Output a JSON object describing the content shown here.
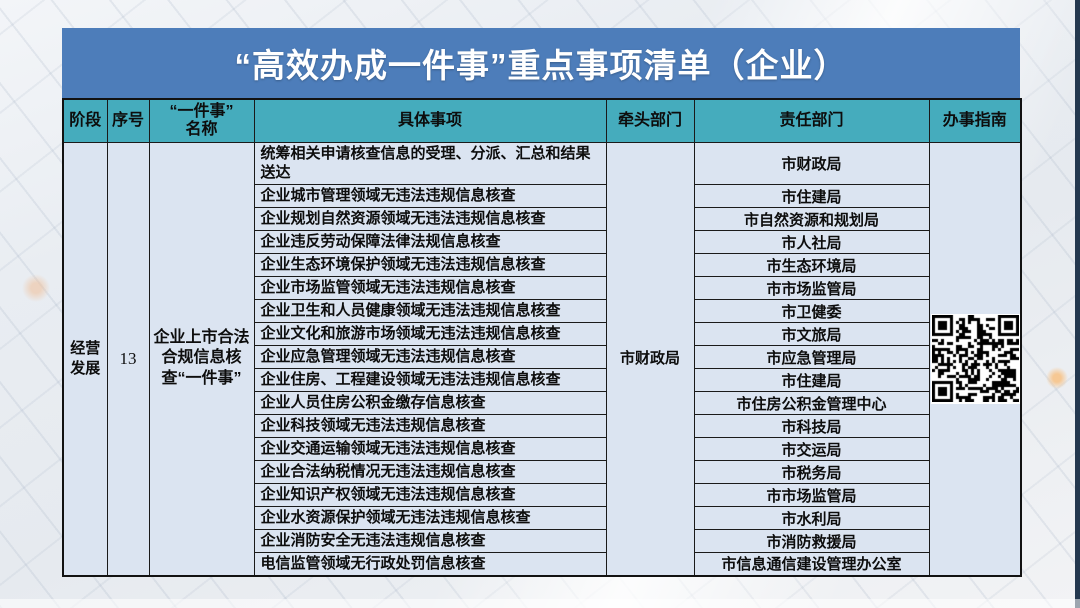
{
  "page": {
    "title": "“高效办成一件事”重点事项清单（企业）"
  },
  "colors": {
    "title_bar": "#4d7dba",
    "header_teal": "#45acbd",
    "cell_blue": "#dbe4f1",
    "border": "#1a1a1a",
    "title_text": "#ffffff"
  },
  "table": {
    "columns": {
      "stage": "阶段",
      "number": "序号",
      "name_line1": "“一件事”",
      "name_line2": "名称",
      "item": "具体事项",
      "lead": "牵头部门",
      "responsible": "责任部门",
      "guide": "办事指南"
    },
    "merged": {
      "stage": "经营发展",
      "number": "13",
      "name": "企业上市合法合规信息核查“一件事”",
      "lead": "市财政局",
      "guide_icon": "qr-code"
    },
    "rows": [
      {
        "item": "统筹相关申请核查信息的受理、分派、汇总和结果送达",
        "responsible": "市财政局"
      },
      {
        "item": "企业城市管理领域无违法违规信息核查",
        "responsible": "市住建局"
      },
      {
        "item": "企业规划自然资源领域无违法违规信息核查",
        "responsible": "市自然资源和规划局"
      },
      {
        "item": "企业违反劳动保障法律法规信息核查",
        "responsible": "市人社局"
      },
      {
        "item": "企业生态环境保护领域无违法违规信息核查",
        "responsible": "市生态环境局"
      },
      {
        "item": "企业市场监管领域无违法违规信息核查",
        "responsible": "市市场监管局"
      },
      {
        "item": "企业卫生和人员健康领域无违法违规信息核查",
        "responsible": "市卫健委"
      },
      {
        "item": "企业文化和旅游市场领域无违法违规信息核查",
        "responsible": "市文旅局"
      },
      {
        "item": "企业应急管理领域无违法违规信息核查",
        "responsible": "市应急管理局"
      },
      {
        "item": "企业住房、工程建设领域无违法违规信息核查",
        "responsible": "市住建局"
      },
      {
        "item": "企业人员住房公积金缴存信息核查",
        "responsible": "市住房公积金管理中心"
      },
      {
        "item": "企业科技领域无违法违规信息核查",
        "responsible": "市科技局"
      },
      {
        "item": "企业交通运输领域无违法违规信息核查",
        "responsible": "市交运局"
      },
      {
        "item": "企业合法纳税情况无违法违规信息核查",
        "responsible": "市税务局"
      },
      {
        "item": "企业知识产权领域无违法违规信息核查",
        "responsible": "市市场监管局"
      },
      {
        "item": "企业水资源保护领域无违法违规信息核查",
        "responsible": "市水利局"
      },
      {
        "item": "企业消防安全无违法违规信息核查",
        "responsible": "市消防救援局"
      },
      {
        "item": "电信监管领域无行政处罚信息核查",
        "responsible": "市信息通信建设管理办公室"
      }
    ]
  }
}
